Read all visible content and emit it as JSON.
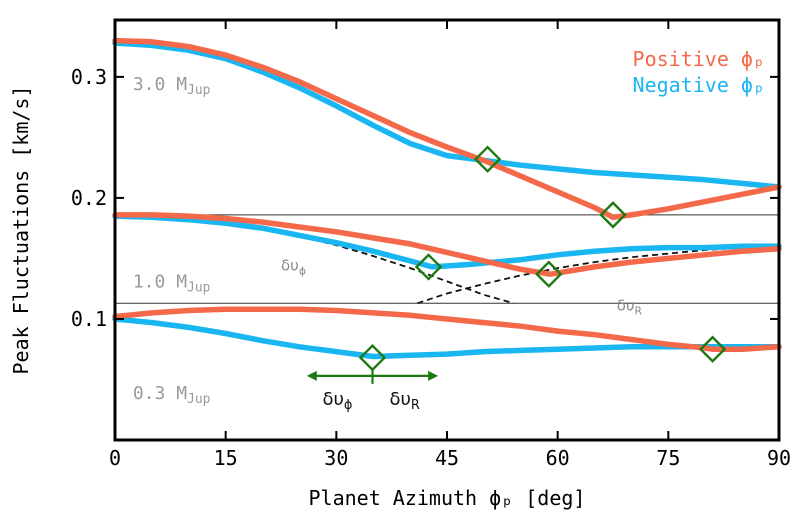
{
  "chart_data": {
    "type": "line",
    "xlabel": "Planet Azimuth ϕₚ [deg]",
    "ylabel": "Peak Fluctuations [km/s]",
    "xlim": [
      0,
      90
    ],
    "ylim": [
      0.0,
      0.347
    ],
    "xticks": [
      0,
      15,
      30,
      45,
      60,
      75,
      90
    ],
    "yticks": [
      0.1,
      0.2,
      0.3
    ],
    "ytick_labels": [
      "0.1",
      "0.2",
      "0.3"
    ],
    "legend": {
      "position": "top-right",
      "entries": [
        {
          "label": "Positive ϕₚ",
          "color": "#f4694a"
        },
        {
          "label": "Negative ϕₚ",
          "color": "#1ab6f2"
        }
      ]
    },
    "separators_y": [
      0.186,
      0.113
    ],
    "mass_labels": [
      {
        "text": "3.0 M",
        "sub": "Jup",
        "x": 1.2,
        "y": 0.289
      },
      {
        "text": "1.0 M",
        "sub": "Jup",
        "x": 1.2,
        "y": 0.126
      },
      {
        "text": "0.3 M",
        "sub": "Jup",
        "x": 1.2,
        "y": 0.034
      }
    ],
    "series": [
      {
        "name": "3.0 MJup Negative",
        "color": "#1ab6f2",
        "x": [
          0,
          5,
          10,
          15,
          20,
          25,
          30,
          35,
          40,
          45,
          50,
          55,
          60,
          65,
          70,
          75,
          80,
          85,
          90
        ],
        "y": [
          0.328,
          0.326,
          0.322,
          0.315,
          0.304,
          0.291,
          0.276,
          0.26,
          0.245,
          0.235,
          0.231,
          0.227,
          0.224,
          0.221,
          0.219,
          0.217,
          0.215,
          0.212,
          0.209
        ]
      },
      {
        "name": "3.0 MJup Positive",
        "color": "#f4694a",
        "x": [
          0,
          5,
          10,
          15,
          20,
          25,
          30,
          35,
          40,
          45,
          50,
          55,
          60,
          65,
          67.5,
          70,
          75,
          80,
          85,
          90
        ],
        "y": [
          0.33,
          0.329,
          0.325,
          0.318,
          0.308,
          0.296,
          0.282,
          0.268,
          0.254,
          0.242,
          0.231,
          0.218,
          0.205,
          0.192,
          0.184,
          0.186,
          0.191,
          0.197,
          0.203,
          0.209
        ]
      },
      {
        "name": "1.0 MJup Negative",
        "color": "#1ab6f2",
        "x": [
          0,
          5,
          10,
          15,
          20,
          25,
          30,
          35,
          40,
          43,
          48,
          55,
          60,
          65,
          70,
          75,
          80,
          85,
          90
        ],
        "y": [
          0.185,
          0.184,
          0.182,
          0.179,
          0.175,
          0.169,
          0.163,
          0.156,
          0.148,
          0.143,
          0.145,
          0.149,
          0.153,
          0.156,
          0.158,
          0.159,
          0.159,
          0.16,
          0.16
        ]
      },
      {
        "name": "1.0 MJup Positive",
        "color": "#f4694a",
        "x": [
          0,
          5,
          10,
          15,
          20,
          25,
          30,
          35,
          40,
          45,
          50,
          55,
          59,
          65,
          70,
          75,
          80,
          85,
          90
        ],
        "y": [
          0.186,
          0.186,
          0.185,
          0.183,
          0.18,
          0.176,
          0.172,
          0.167,
          0.162,
          0.155,
          0.148,
          0.141,
          0.137,
          0.143,
          0.147,
          0.15,
          0.153,
          0.156,
          0.158
        ]
      },
      {
        "name": "0.3 MJup Negative",
        "color": "#1ab6f2",
        "x": [
          0,
          5,
          10,
          15,
          20,
          25,
          30,
          35,
          40,
          45,
          50,
          55,
          60,
          65,
          70,
          75,
          80,
          85,
          90
        ],
        "y": [
          0.1,
          0.097,
          0.093,
          0.088,
          0.082,
          0.077,
          0.073,
          0.069,
          0.07,
          0.071,
          0.073,
          0.074,
          0.075,
          0.076,
          0.077,
          0.077,
          0.077,
          0.077,
          0.077
        ]
      },
      {
        "name": "0.3 MJup Positive",
        "color": "#f4694a",
        "x": [
          0,
          5,
          10,
          15,
          20,
          25,
          30,
          35,
          40,
          45,
          50,
          55,
          60,
          65,
          70,
          75,
          80,
          81,
          85,
          90
        ],
        "y": [
          0.102,
          0.105,
          0.107,
          0.108,
          0.108,
          0.108,
          0.107,
          0.105,
          0.103,
          0.1,
          0.097,
          0.094,
          0.09,
          0.087,
          0.083,
          0.079,
          0.076,
          0.075,
          0.075,
          0.077
        ]
      }
    ],
    "dashed_curves": [
      {
        "name": "dv_phi",
        "x": [
          0,
          5,
          10,
          15,
          20,
          25,
          30,
          35,
          40,
          45,
          50,
          54
        ],
        "y": [
          0.185,
          0.184,
          0.182,
          0.179,
          0.174,
          0.168,
          0.161,
          0.152,
          0.142,
          0.131,
          0.12,
          0.113
        ]
      },
      {
        "name": "dv_R",
        "x": [
          41,
          45,
          50,
          55,
          60,
          65,
          70,
          75,
          80,
          85,
          90
        ],
        "y": [
          0.113,
          0.121,
          0.129,
          0.136,
          0.142,
          0.147,
          0.151,
          0.154,
          0.157,
          0.159,
          0.16
        ]
      }
    ],
    "dashed_labels": [
      {
        "text": "δυ",
        "sub": "ϕ",
        "x": 22.5,
        "y": 0.14
      },
      {
        "text": "δυ",
        "sub": "R",
        "x": 68,
        "y": 0.107
      }
    ],
    "markers": [
      {
        "x": 50.5,
        "y": 0.232
      },
      {
        "x": 67.5,
        "y": 0.186
      },
      {
        "x": 42.5,
        "y": 0.143
      },
      {
        "x": 58.8,
        "y": 0.137
      },
      {
        "x": 34.9,
        "y": 0.068
      },
      {
        "x": 81.0,
        "y": 0.075
      }
    ],
    "marker_color": "#1d7a12",
    "arrow": {
      "x_from": 26,
      "x_to": 43.8,
      "x_center": 34.9,
      "y": 0.053,
      "color": "#1d7a12",
      "label_left": {
        "text": "δυ",
        "sub": "ϕ"
      },
      "label_right": {
        "text": "δυ",
        "sub": "R"
      }
    }
  }
}
